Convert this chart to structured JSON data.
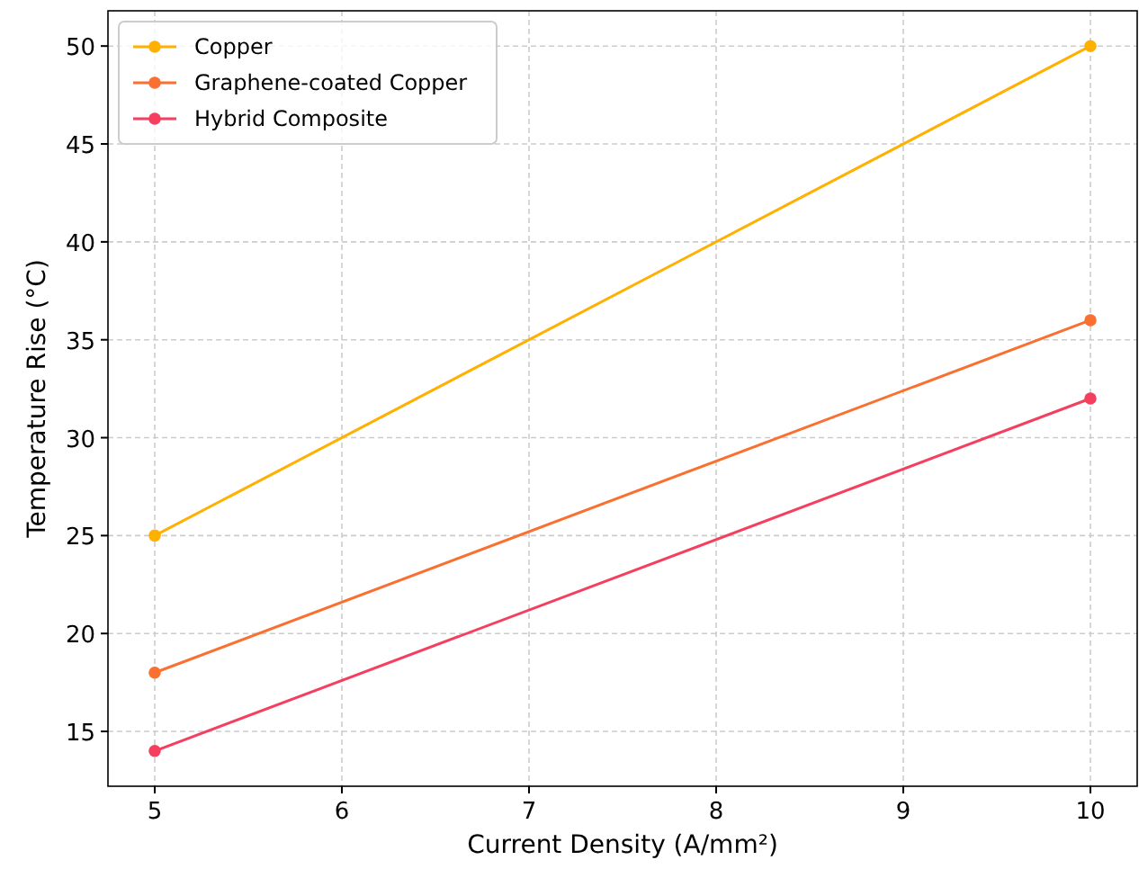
{
  "chart_data": {
    "type": "line",
    "xlabel": "Current Density (A/mm²)",
    "ylabel": "Temperature Rise (°C)",
    "x": [
      5,
      10
    ],
    "series": [
      {
        "name": "Copper",
        "color": "#ffb000",
        "values": [
          25,
          50
        ]
      },
      {
        "name": "Graphene-coated Copper",
        "color": "#f97030",
        "values": [
          18,
          36
        ]
      },
      {
        "name": "Hybrid Composite",
        "color": "#f43f5e",
        "values": [
          14,
          32
        ]
      }
    ],
    "xlim": [
      4.75,
      10.25
    ],
    "xticks": [
      5,
      6,
      7,
      8,
      9,
      10
    ],
    "ylim": [
      12.2,
      51.8
    ],
    "yticks": [
      15,
      20,
      25,
      30,
      35,
      40,
      45,
      50
    ],
    "grid": true,
    "legend": "top left",
    "marker": "circle",
    "line_style": "solid"
  }
}
